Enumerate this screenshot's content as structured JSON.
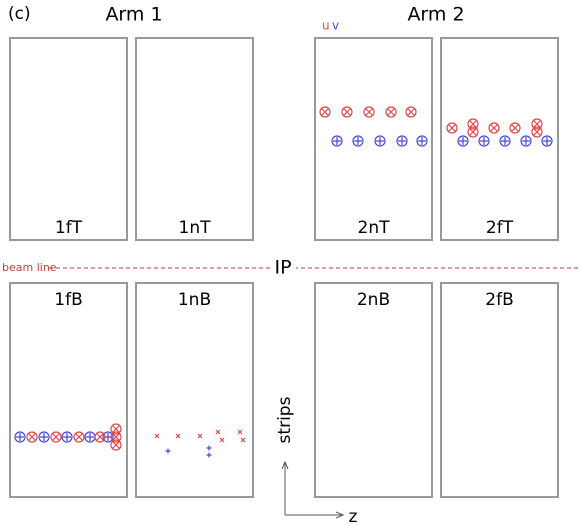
{
  "figure_label": "(c)",
  "arms": [
    "Arm 1",
    "Arm 2"
  ],
  "legend": [
    "u",
    "v"
  ],
  "panels": [
    "1fT",
    "1nT",
    "2nT",
    "2fT",
    "1fB",
    "1nB",
    "2nB",
    "2fB"
  ],
  "beam_line": "beam line",
  "ip": "IP",
  "axes": {
    "vertical": "strips",
    "horizontal": "z"
  }
}
